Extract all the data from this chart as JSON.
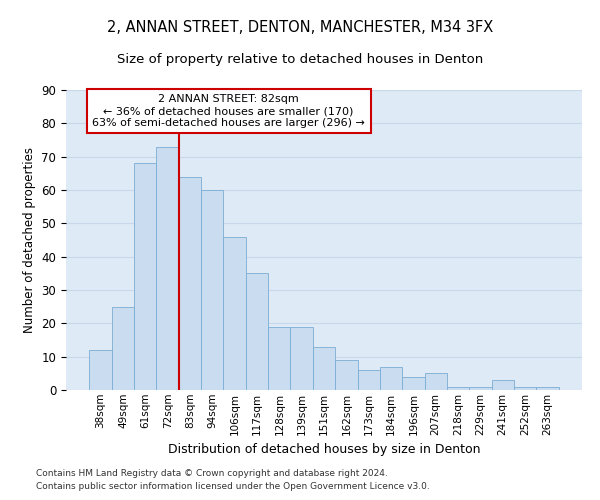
{
  "title1": "2, ANNAN STREET, DENTON, MANCHESTER, M34 3FX",
  "title2": "Size of property relative to detached houses in Denton",
  "xlabel": "Distribution of detached houses by size in Denton",
  "ylabel": "Number of detached properties",
  "categories": [
    "38sqm",
    "49sqm",
    "61sqm",
    "72sqm",
    "83sqm",
    "94sqm",
    "106sqm",
    "117sqm",
    "128sqm",
    "139sqm",
    "151sqm",
    "162sqm",
    "173sqm",
    "184sqm",
    "196sqm",
    "207sqm",
    "218sqm",
    "229sqm",
    "241sqm",
    "252sqm",
    "263sqm"
  ],
  "values": [
    12,
    25,
    68,
    73,
    64,
    60,
    46,
    35,
    19,
    19,
    13,
    9,
    6,
    7,
    4,
    5,
    1,
    1,
    3,
    1,
    1
  ],
  "bar_color": "#c9dcf0",
  "bar_edge_color": "#7aadd4",
  "vline_color": "#cc0000",
  "annotation_line1": "2 ANNAN STREET: 82sqm",
  "annotation_line2": "← 36% of detached houses are smaller (170)",
  "annotation_line3": "63% of semi-detached houses are larger (296) →",
  "annotation_box_color": "#ffffff",
  "annotation_box_edge": "#cc0000",
  "ylim": [
    0,
    90
  ],
  "yticks": [
    0,
    10,
    20,
    30,
    40,
    50,
    60,
    70,
    80,
    90
  ],
  "footer1": "Contains HM Land Registry data © Crown copyright and database right 2024.",
  "footer2": "Contains public sector information licensed under the Open Government Licence v3.0.",
  "grid_color": "#c8d8ea",
  "background_color": "#deeaf6",
  "title_fontsize": 10.5,
  "subtitle_fontsize": 9.5,
  "title_fontweight": "normal"
}
